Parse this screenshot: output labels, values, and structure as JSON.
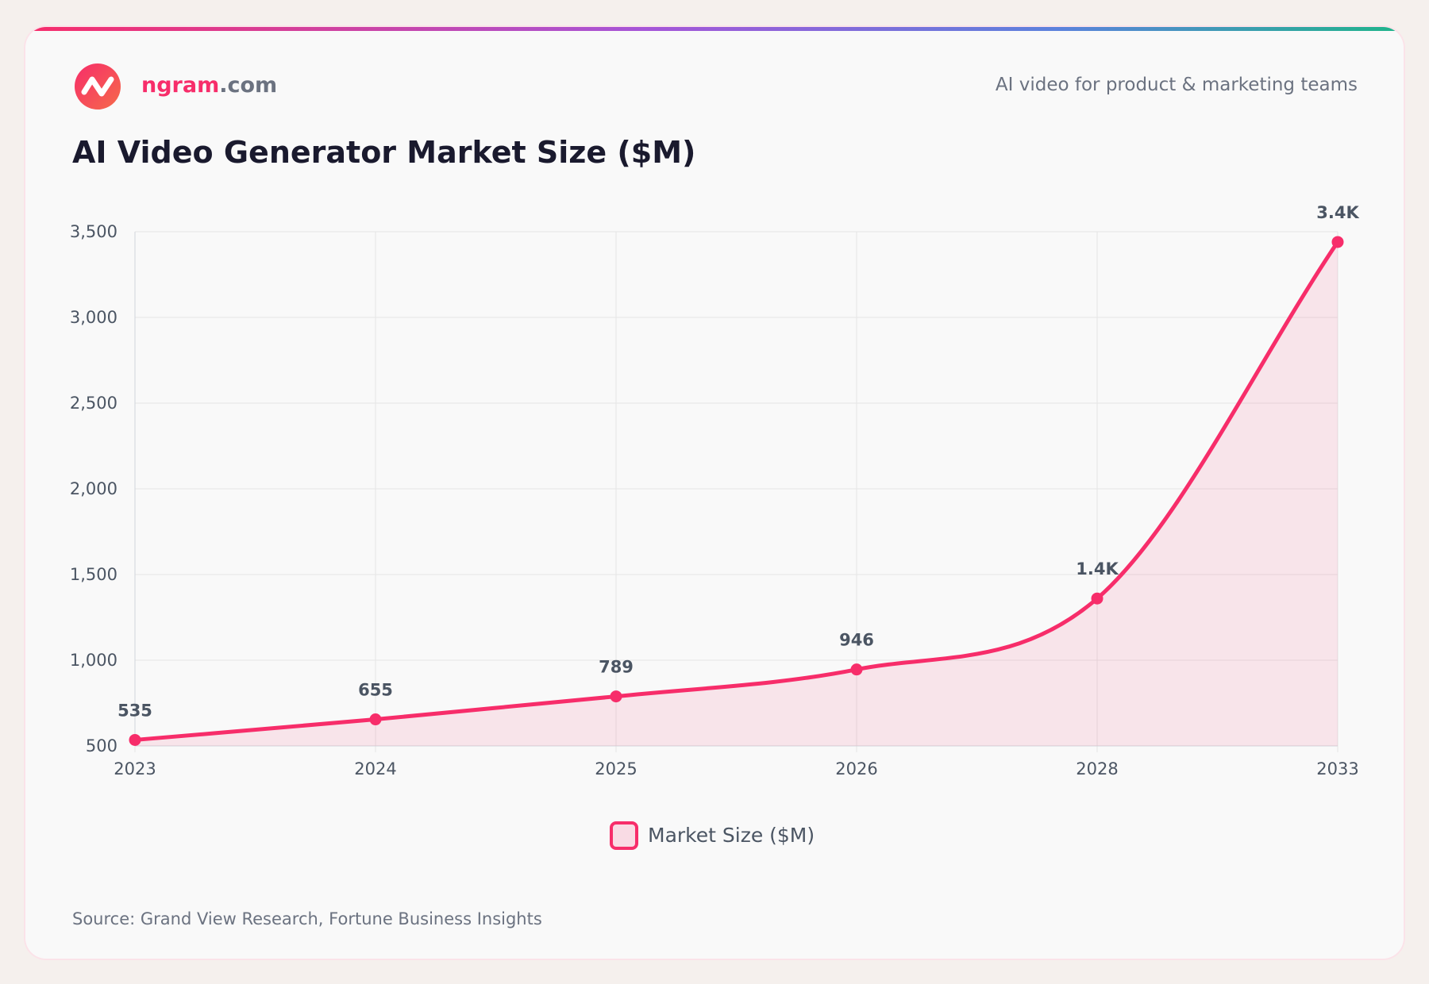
{
  "header": {
    "brand": "ngram",
    "domain": ".com",
    "tagline": "AI video for product & marketing teams"
  },
  "chart_data": {
    "type": "line",
    "title": "AI Video Generator Market Size ($M)",
    "categories": [
      "2023",
      "2024",
      "2025",
      "2026",
      "2028",
      "2033"
    ],
    "series": [
      {
        "name": "Market Size ($M)",
        "color": "#f72d6a",
        "values": [
          535,
          655,
          789,
          946,
          1360,
          3440
        ],
        "value_labels": [
          "535",
          "655",
          "789",
          "946",
          "1.4K",
          "3.4K"
        ]
      }
    ],
    "ylim": [
      500,
      3500
    ],
    "yticks": [
      500,
      {
        "value": 1000,
        "label": "1,000"
      },
      {
        "value": 1500,
        "label": "1,500"
      },
      {
        "value": 2000,
        "label": "2,000"
      },
      {
        "value": 2500,
        "label": "2,500"
      },
      {
        "value": 3000,
        "label": "3,000"
      },
      {
        "value": 3500,
        "label": "3,500"
      }
    ],
    "grid": true,
    "legend": "bottom",
    "area": true
  },
  "source": "Source: Grand View Research, Fortune Business Insights"
}
